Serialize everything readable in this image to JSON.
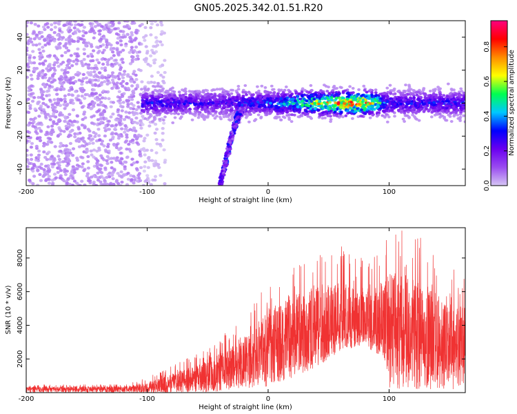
{
  "title": "GN05.2025.342.01.51.R20",
  "chart_data": [
    {
      "type": "heatmap",
      "name": "spectrogram",
      "xlabel": "Height of straight line (km)",
      "ylabel": "Frequency (Hz)",
      "xlim": [
        -200,
        163
      ],
      "ylim": [
        -50,
        50
      ],
      "xticks": [
        -200,
        -100,
        0,
        100
      ],
      "yticks": [
        -40,
        -20,
        0,
        20,
        40
      ],
      "colorbar": {
        "label": "Normalized spectral amplitude",
        "range": [
          0,
          0.95
        ],
        "ticks": [
          0.0,
          0.2,
          0.4,
          0.6,
          0.8
        ],
        "tick_labels": [
          "0.0",
          "0.2",
          "0.4",
          "0.6",
          "0.8"
        ],
        "colors": [
          "#d6c6f4",
          "#9a4cf0",
          "#6a00f0",
          "#0000ff",
          "#00c8ff",
          "#00ff50",
          "#ffff00",
          "#ff8c00",
          "#ff0000",
          "#ff007f"
        ]
      },
      "regions": [
        {
          "description": "broadband noise",
          "x": [
            -200,
            -105
          ],
          "freq": [
            -50,
            50
          ],
          "amplitude": [
            0.02,
            0.08
          ]
        },
        {
          "description": "sparse noise tail",
          "x": [
            -105,
            -85
          ],
          "freq": [
            -50,
            50
          ],
          "amplitude": [
            0.0,
            0.03
          ]
        },
        {
          "description": "doppler band",
          "x": [
            -105,
            163
          ],
          "freq_center": 0,
          "freq_halfwidth": 8,
          "amplitude": [
            0.1,
            0.95
          ]
        }
      ],
      "trace": {
        "description": "descending chirp",
        "x": [
          -40,
          -37,
          -34,
          -31,
          -28,
          -25,
          -22,
          -19
        ],
        "freq": [
          -50,
          -42,
          -32,
          -22,
          -14,
          -8,
          -4,
          -2
        ]
      },
      "band_peak_amplitude": [
        {
          "x": -100,
          "value": 0.35
        },
        {
          "x": -50,
          "value": 0.3
        },
        {
          "x": 0,
          "value": 0.4
        },
        {
          "x": 40,
          "value": 0.75
        },
        {
          "x": 60,
          "value": 0.9
        },
        {
          "x": 80,
          "value": 0.95
        },
        {
          "x": 100,
          "value": 0.35
        },
        {
          "x": 160,
          "value": 0.35
        }
      ]
    },
    {
      "type": "line",
      "name": "snr",
      "xlabel": "Height of straight line (km)",
      "ylabel": "SNR (10 * v/v)",
      "xlim": [
        -200,
        163
      ],
      "ylim": [
        0,
        9800
      ],
      "xticks": [
        -200,
        -100,
        0,
        100
      ],
      "yticks": [
        2000,
        4000,
        6000,
        8000
      ],
      "color": "#f03232",
      "envelope": {
        "x": [
          -200,
          -120,
          -100,
          -80,
          -60,
          -40,
          -20,
          0,
          20,
          40,
          60,
          80,
          95,
          100,
          120,
          140,
          163
        ],
        "low": [
          0,
          0,
          0,
          0,
          0,
          50,
          100,
          300,
          900,
          1500,
          2500,
          2800,
          2000,
          200,
          200,
          200,
          200
        ],
        "mean": [
          200,
          200,
          300,
          500,
          800,
          1200,
          1800,
          2800,
          3400,
          3700,
          3800,
          3800,
          3600,
          3800,
          3300,
          2900,
          2600
        ],
        "high": [
          500,
          500,
          900,
          1600,
          2400,
          3300,
          4400,
          6800,
          7500,
          8600,
          8800,
          8000,
          8500,
          9800,
          9500,
          8700,
          7000
        ]
      }
    }
  ]
}
